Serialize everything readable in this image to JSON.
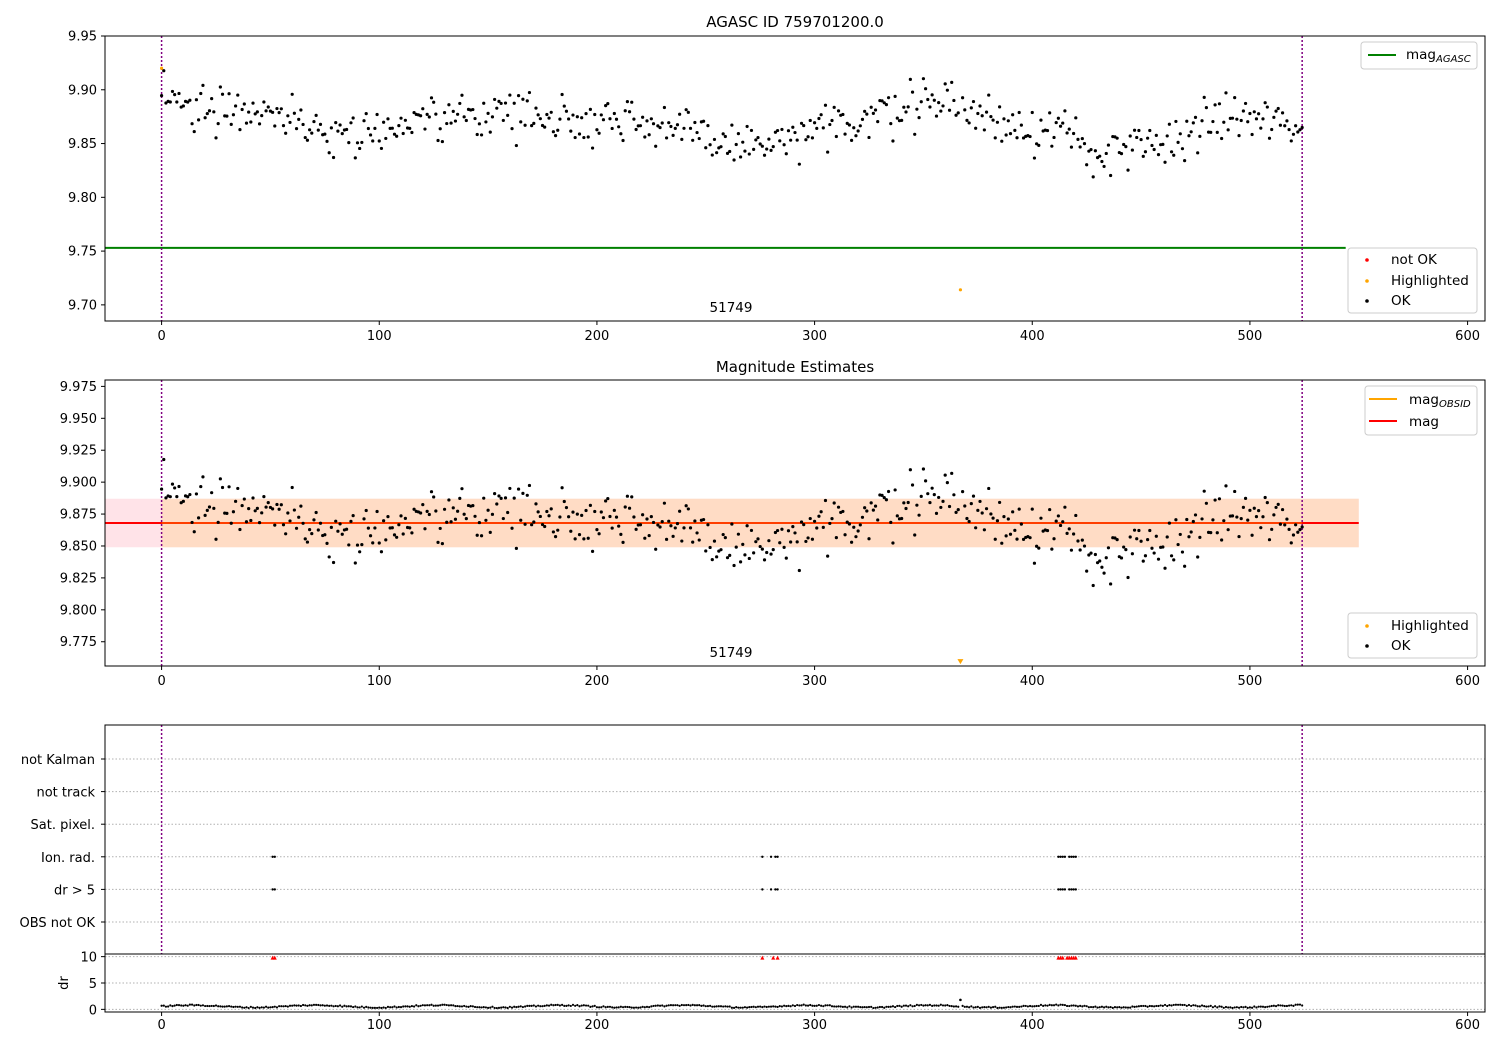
{
  "chart_data": [
    {
      "type": "scatter",
      "title": "AGASC ID 759701200.0",
      "xlim": [
        -26,
        608
      ],
      "ylim": [
        9.685,
        9.95
      ],
      "xticks": [
        0,
        100,
        200,
        300,
        400,
        500,
        600
      ],
      "yticks": [
        "9.70",
        "9.75",
        "9.80",
        "9.85",
        "9.90",
        "9.95"
      ],
      "grid": false,
      "legend_upper": [
        "mag_AGASC"
      ],
      "legend_lower": [
        "not OK",
        "Highlighted",
        "OK"
      ],
      "legend_upper_loc": "upper right",
      "legend_lower_loc": "lower right",
      "obsid_label": "51749",
      "agasc_mag": 9.753,
      "vlines": [
        0,
        524
      ],
      "highlighted_points": [
        {
          "x": 0,
          "y": 9.92
        },
        {
          "x": 367,
          "y": 9.714
        }
      ],
      "colors": {
        "ok": "#000000",
        "not_ok": "#ff0000",
        "highlighted": "#ffa500",
        "agasc": "#008000",
        "vline": "#800080"
      }
    },
    {
      "type": "scatter",
      "title": "Magnitude Estimates",
      "xlim": [
        -26,
        608
      ],
      "ylim": [
        9.756,
        9.98
      ],
      "xticks": [
        0,
        100,
        200,
        300,
        400,
        500,
        600
      ],
      "yticks": [
        "9.775",
        "9.800",
        "9.825",
        "9.850",
        "9.875",
        "9.900",
        "9.925",
        "9.950",
        "9.975"
      ],
      "grid": false,
      "legend_upper": [
        "mag_OBSID",
        "mag"
      ],
      "legend_lower": [
        "Highlighted",
        "OK"
      ],
      "legend_upper_loc": "upper right",
      "legend_lower_loc": "lower right",
      "obsid_label": "51749",
      "mean_mag": 9.868,
      "band": [
        9.849,
        9.887
      ],
      "highlighted_points": [
        {
          "x": 367,
          "y": 9.759
        }
      ],
      "colors": {
        "ok": "#000000",
        "highlighted": "#ffa500",
        "mag": "#ff0000",
        "obsid": "#ffa500",
        "band_outer": "#ffc0cb",
        "band_inner": "#ffdab9",
        "vline": "#800080"
      }
    },
    {
      "type": "scatter",
      "title": "",
      "categories": [
        "not Kalman",
        "not track",
        "Sat. pixel.",
        "Ion. rad.",
        "dr > 5",
        "OBS not OK"
      ],
      "flags": {
        "ion_rad_x": [
          51,
          52,
          276,
          280,
          282,
          283,
          412,
          413,
          414,
          415,
          417,
          418,
          419,
          420
        ],
        "dr5_x": [
          51,
          52,
          276,
          280,
          282,
          283,
          412,
          413,
          414,
          415,
          417,
          418,
          419,
          420
        ]
      },
      "dr": {
        "ylabel": "dr",
        "yticks": [
          0,
          5,
          10
        ],
        "ylim": [
          -0.5,
          10.5
        ],
        "clip_x": [
          51,
          52,
          276,
          281,
          283,
          412,
          413,
          414,
          416,
          417,
          418,
          419,
          420
        ],
        "spike": {
          "x": 367,
          "y": 1.8
        }
      },
      "xlim": [
        -26,
        608
      ],
      "xticks": [
        0,
        100,
        200,
        300,
        400,
        500,
        600
      ],
      "n_obs": 524
    }
  ]
}
